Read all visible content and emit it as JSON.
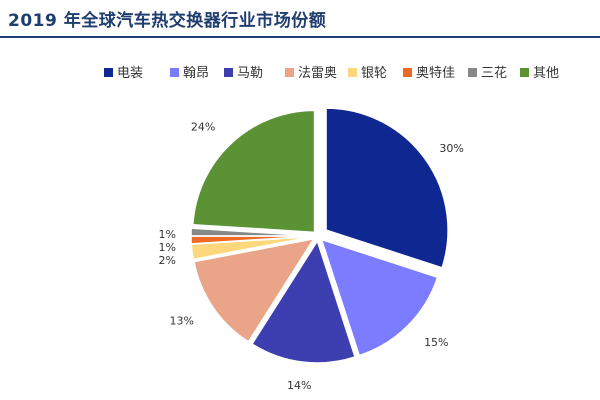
{
  "title": "2019 年全球汽车热交换器行业市场份额",
  "colors": {
    "title": "#1f3d6e"
  },
  "chart_data": {
    "type": "pie",
    "title": "2019 年全球汽车热交换器行业市场份额",
    "legend_position": "top",
    "slices": [
      {
        "label": "电装",
        "value": 30,
        "value_label": "30%",
        "color": "#0f2790"
      },
      {
        "label": "翰昂",
        "value": 15,
        "value_label": "15%",
        "color": "#7b7cff"
      },
      {
        "label": "马勒",
        "value": 14,
        "value_label": "14%",
        "color": "#3d3fb0"
      },
      {
        "label": "法雷奥",
        "value": 13,
        "value_label": "13%",
        "color": "#eaa588"
      },
      {
        "label": "银轮",
        "value": 2,
        "value_label": "2%",
        "color": "#fdd77b"
      },
      {
        "label": "奥特佳",
        "value": 1,
        "value_label": "1%",
        "color": "#ee6a24"
      },
      {
        "label": "三花",
        "value": 1,
        "value_label": "1%",
        "color": "#888888"
      },
      {
        "label": "其他",
        "value": 24,
        "value_label": "24%",
        "color": "#5b9233"
      }
    ]
  }
}
